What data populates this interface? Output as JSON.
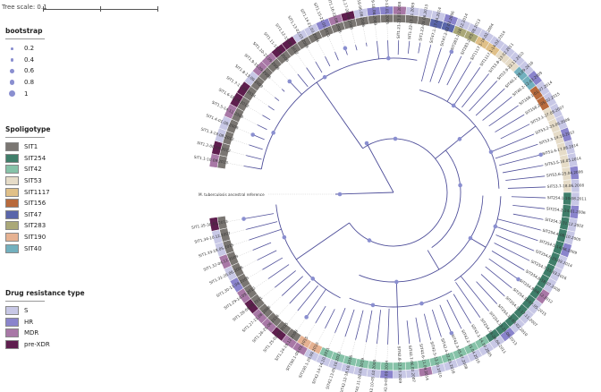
{
  "tree_scale_label": "Tree scale: 0.1",
  "outgroup_label": "M. tuberculosis ancestral reference",
  "bootstrap": {
    "title": "bootstrap",
    "items": [
      {
        "label": "0.2",
        "value": 0.2
      },
      {
        "label": "0.4",
        "value": 0.4
      },
      {
        "label": "0.6",
        "value": 0.6
      },
      {
        "label": "0.8",
        "value": 0.8
      },
      {
        "label": "1",
        "value": 1
      }
    ],
    "color": "#8a8fd0"
  },
  "spoligotype": {
    "title": "Spoligotype",
    "items": [
      {
        "label": "SIT1",
        "color": "#7a7672"
      },
      {
        "label": "SIT254",
        "color": "#3f7e6a"
      },
      {
        "label": "SIT42",
        "color": "#86c2a8"
      },
      {
        "label": "SIT53",
        "color": "#e6dcc8"
      },
      {
        "label": "SIT1117",
        "color": "#e0c088"
      },
      {
        "label": "SIT156",
        "color": "#b86a3c"
      },
      {
        "label": "SIT47",
        "color": "#5a66aa"
      },
      {
        "label": "SIT283",
        "color": "#aaa878"
      },
      {
        "label": "SIT190",
        "color": "#e6b292"
      },
      {
        "label": "SIT40",
        "color": "#72b0be"
      }
    ]
  },
  "drug_resistance": {
    "title": "Drug resistance type",
    "items": [
      {
        "label": "S",
        "color": "#c8c8e6"
      },
      {
        "label": "HR",
        "color": "#8a84cc"
      },
      {
        "label": "MDR",
        "color": "#a878a6"
      },
      {
        "label": "pre-XDR",
        "color": "#5e1e4e"
      }
    ]
  },
  "tree": {
    "leaves": [
      {
        "label": "SIT1.1-10.09.2013",
        "sit": 0,
        "dr": 2
      },
      {
        "label": "SIT1.2-08.08.2012",
        "sit": 0,
        "dr": 3
      },
      {
        "label": "SIT1.3-19.08.2012",
        "sit": 0,
        "dr": 0
      },
      {
        "label": "SIT1.4-01.08.2008",
        "sit": 0,
        "dr": 0
      },
      {
        "label": "SIT1.5-14.11.2008",
        "sit": 0,
        "dr": 2
      },
      {
        "label": "SIT1.6-18.09.2012",
        "sit": 0,
        "dr": 3
      },
      {
        "label": "SIT1.7-17.09.2014",
        "sit": 0,
        "dr": 3
      },
      {
        "label": "SIT1.8-13.09.2009",
        "sit": 0,
        "dr": 0
      },
      {
        "label": "SIT1.9-15.09.2008",
        "sit": 0,
        "dr": 2
      },
      {
        "label": "SIT1.10-27.09.2009",
        "sit": 0,
        "dr": 2
      },
      {
        "label": "SIT1.11-11.09.2009",
        "sit": 0,
        "dr": 3
      },
      {
        "label": "SIT1.12-15.09.2012",
        "sit": 0,
        "dr": 3
      },
      {
        "label": "SIT1.13-02.03.2009",
        "sit": 0,
        "dr": 0
      },
      {
        "label": "SIT1.14-21.03.2004",
        "sit": 0,
        "dr": 0
      },
      {
        "label": "SIT1.15-21.05.2011",
        "sit": 0,
        "dr": 1
      },
      {
        "label": "SIT1.16-22.08.2008",
        "sit": 0,
        "dr": 2
      },
      {
        "label": "SIT1.17-28.08.2008",
        "sit": 0,
        "dr": 3
      },
      {
        "label": "SIT1.18-06.08.2006",
        "sit": 0,
        "dr": 0
      },
      {
        "label": "SIT1.19-18.08.2009",
        "sit": 0,
        "dr": 1
      },
      {
        "label": "SIT1.20-13.01.2005",
        "sit": 0,
        "dr": 1
      },
      {
        "label": "SIT1.21-23.01.2008",
        "sit": 0,
        "dr": 2
      },
      {
        "label": "SIT1.22-13.11.2009",
        "sit": 0,
        "dr": 0
      },
      {
        "label": "SIT1.23-05.06.2013",
        "sit": 0,
        "dr": 0
      },
      {
        "label": "SIT47.1-17.04.2014",
        "sit": 6,
        "dr": 0
      },
      {
        "label": "SIT47.2-02.02.2006",
        "sit": 6,
        "dr": 1
      },
      {
        "label": "SIT283.1-18.12.2014",
        "sit": 7,
        "dr": 0
      },
      {
        "label": "SIT283.2-03.08.2013",
        "sit": 7,
        "dr": 0
      },
      {
        "label": "SIT1117.1-18.02.2004",
        "sit": 4,
        "dr": 0
      },
      {
        "label": "SIT1117.1-14.02.2014",
        "sit": 4,
        "dr": 0
      },
      {
        "label": "SIT53.8-23.02.2011",
        "sit": 3,
        "dr": 0
      },
      {
        "label": "SIT53.9-22.11.2010",
        "sit": 3,
        "dr": 0
      },
      {
        "label": "SIT40.1-28.09.2016",
        "sit": 9,
        "dr": 0
      },
      {
        "label": "SIT40.2-12.03.2009",
        "sit": 9,
        "dr": 1
      },
      {
        "label": "SIT156.1-01.07.2014",
        "sit": 5,
        "dr": 0
      },
      {
        "label": "SIT156.2-05.02.2015",
        "sit": 5,
        "dr": 0
      },
      {
        "label": "SIT53.1-27.08.2007",
        "sit": 3,
        "dr": 0
      },
      {
        "label": "SIT53.2-23.06.2008",
        "sit": 3,
        "dr": 0
      },
      {
        "label": "SIT53.3-14.10.2012",
        "sit": 3,
        "dr": 1
      },
      {
        "label": "SIT53.4-17.08.2014",
        "sit": 3,
        "dr": 0
      },
      {
        "label": "SIT53.5-16.05.2014",
        "sit": 3,
        "dr": 0
      },
      {
        "label": "SIT53.6-25.04.2006",
        "sit": 3,
        "dr": 1
      },
      {
        "label": "SIT53.7-18.06.2008",
        "sit": 3,
        "dr": 0
      },
      {
        "label": "SIT254.1-10.08.2011",
        "sit": 1,
        "dr": 0
      },
      {
        "label": "SIT254.2-24.01.2006",
        "sit": 1,
        "dr": 1
      },
      {
        "label": "SIT254.3-31.12.2002",
        "sit": 1,
        "dr": 0
      },
      {
        "label": "SIT254.4-08.10.2005",
        "sit": 1,
        "dr": 0
      },
      {
        "label": "SIT254.5-14.06.2009",
        "sit": 1,
        "dr": 1
      },
      {
        "label": "SIT254.6-25.09.2014",
        "sit": 1,
        "dr": 0
      },
      {
        "label": "SIT254.7-15.03.2016",
        "sit": 1,
        "dr": 0
      },
      {
        "label": "SIT254.8-18.07.2008",
        "sit": 1,
        "dr": 0
      },
      {
        "label": "SIT254.9-08.12.2012",
        "sit": 1,
        "dr": 2
      },
      {
        "label": "SIT254.10-07.05.2015",
        "sit": 1,
        "dr": 0
      },
      {
        "label": "SIT254.11-17.11.2007",
        "sit": 1,
        "dr": 0
      },
      {
        "label": "SIT254.12-03.02.2010",
        "sit": 1,
        "dr": 0
      },
      {
        "label": "SIT254.13-21.06.2013",
        "sit": 1,
        "dr": 1
      },
      {
        "label": "SIT254.14-28.04.2011",
        "sit": 1,
        "dr": 0
      },
      {
        "label": "SIT42.1-14.10.2005",
        "sit": 2,
        "dr": 0
      },
      {
        "label": "SIT42.2-15.04.2016",
        "sit": 2,
        "dr": 0
      },
      {
        "label": "SIT42.3-05.07.2008",
        "sit": 2,
        "dr": 0
      },
      {
        "label": "SIT42.4-22.05.2016",
        "sit": 2,
        "dr": 0
      },
      {
        "label": "SIT42.5-13.10.2010",
        "sit": 2,
        "dr": 0
      },
      {
        "label": "SIT42.6-11.09.2014",
        "sit": 2,
        "dr": 2
      },
      {
        "label": "SIT42.7-06.02.2007",
        "sit": 2,
        "dr": 0
      },
      {
        "label": "SIT42.8-12.03.2009",
        "sit": 2,
        "dr": 0
      },
      {
        "label": "SIT42.9-03.09.2014",
        "sit": 2,
        "dr": 1
      },
      {
        "label": "SIT42.10-05.02.2008",
        "sit": 2,
        "dr": 0
      },
      {
        "label": "SIT42.11-28.09.2019",
        "sit": 2,
        "dr": 0
      },
      {
        "label": "SIT42.12-18.10.2016",
        "sit": 2,
        "dr": 0
      },
      {
        "label": "SIT42.13-05.10.2013",
        "sit": 2,
        "dr": 0
      },
      {
        "label": "SIT42.14-14.10.2011",
        "sit": 2,
        "dr": 0
      },
      {
        "label": "SIT190.1-29.09.2010",
        "sit": 8,
        "dr": 0
      },
      {
        "label": "SIT190.1-09.01.2015",
        "sit": 8,
        "dr": 2
      },
      {
        "label": "SIT1.24-19.12.2009",
        "sit": 0,
        "dr": 2
      },
      {
        "label": "SIT1.25-02.03.2015",
        "sit": 0,
        "dr": 3
      },
      {
        "label": "SIT1.26-25.06.2014",
        "sit": 0,
        "dr": 2
      },
      {
        "label": "SIT1.27-11.08.2008",
        "sit": 0,
        "dr": 2
      },
      {
        "label": "SIT1.28-08.06.2011",
        "sit": 0,
        "dr": 3
      },
      {
        "label": "SIT1.29-14.05.2012",
        "sit": 0,
        "dr": 2
      },
      {
        "label": "SIT1.30-11.04.2009",
        "sit": 0,
        "dr": 1
      },
      {
        "label": "SIT1.31-26.06.2006",
        "sit": 0,
        "dr": 0
      },
      {
        "label": "SIT1.32-04.11.2009",
        "sit": 0,
        "dr": 2
      },
      {
        "label": "SIT1.33-18.05.2015",
        "sit": 0,
        "dr": 0
      },
      {
        "label": "SIT1.34-10.12.2007",
        "sit": 0,
        "dr": 0
      },
      {
        "label": "SIT1.35-30.03.2013",
        "sit": 0,
        "dr": 3
      }
    ]
  }
}
